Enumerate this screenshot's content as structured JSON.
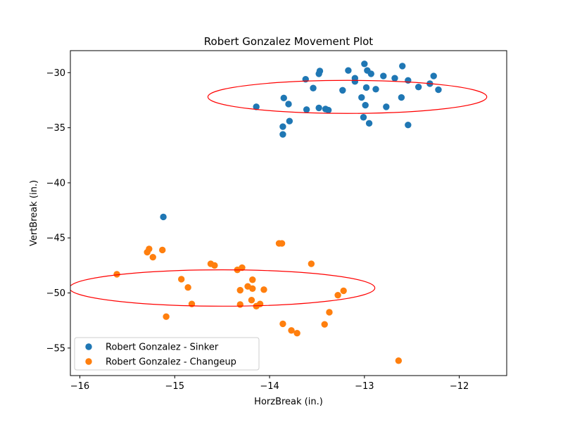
{
  "chart_data": {
    "type": "scatter",
    "title": "Robert Gonzalez Movement Plot",
    "xlabel": "HorzBreak (in.)",
    "ylabel": "VertBreak (in.)",
    "xlim": [
      -16.1,
      -11.5
    ],
    "ylim": [
      -57.5,
      -28
    ],
    "xticks": [
      -16,
      -15,
      -14,
      -13,
      -12
    ],
    "xtick_labels": [
      "−16",
      "−15",
      "−14",
      "−13",
      "−12"
    ],
    "yticks": [
      -55,
      -50,
      -45,
      -40,
      -35,
      -30
    ],
    "ytick_labels": [
      "−55",
      "−50",
      "−45",
      "−40",
      "−35",
      "−30"
    ],
    "grid": false,
    "legend_position": "lower-left",
    "series": [
      {
        "name": "Robert Gonzalez - Sinker",
        "color": "#1f77b4",
        "points": [
          [
            -13.0,
            -29.2
          ],
          [
            -12.6,
            -29.4
          ],
          [
            -12.97,
            -29.8
          ],
          [
            -13.17,
            -29.8
          ],
          [
            -13.47,
            -29.85
          ],
          [
            -13.48,
            -30.1
          ],
          [
            -12.93,
            -30.1
          ],
          [
            -12.8,
            -30.3
          ],
          [
            -12.27,
            -30.3
          ],
          [
            -13.1,
            -30.5
          ],
          [
            -12.68,
            -30.5
          ],
          [
            -13.62,
            -30.6
          ],
          [
            -12.54,
            -30.7
          ],
          [
            -13.1,
            -30.8
          ],
          [
            -12.31,
            -31.0
          ],
          [
            -12.43,
            -31.3
          ],
          [
            -12.98,
            -31.35
          ],
          [
            -13.54,
            -31.4
          ],
          [
            -12.88,
            -31.5
          ],
          [
            -13.23,
            -31.6
          ],
          [
            -12.22,
            -31.55
          ],
          [
            -13.03,
            -32.25
          ],
          [
            -13.85,
            -32.3
          ],
          [
            -12.61,
            -32.25
          ],
          [
            -13.8,
            -32.85
          ],
          [
            -12.99,
            -32.95
          ],
          [
            -14.14,
            -33.1
          ],
          [
            -12.77,
            -33.1
          ],
          [
            -13.48,
            -33.2
          ],
          [
            -13.61,
            -33.35
          ],
          [
            -13.41,
            -33.3
          ],
          [
            -13.38,
            -33.4
          ],
          [
            -13.01,
            -34.05
          ],
          [
            -13.79,
            -34.4
          ],
          [
            -12.95,
            -34.6
          ],
          [
            -12.54,
            -34.75
          ],
          [
            -13.86,
            -34.9
          ],
          [
            -13.86,
            -35.6
          ],
          [
            -15.12,
            -43.1
          ]
        ]
      },
      {
        "name": "Robert Gonzalez - Changeup",
        "color": "#ff7f0e",
        "points": [
          [
            -13.9,
            -45.5
          ],
          [
            -13.87,
            -45.5
          ],
          [
            -15.27,
            -46.0
          ],
          [
            -15.13,
            -46.1
          ],
          [
            -15.29,
            -46.3
          ],
          [
            -15.23,
            -46.75
          ],
          [
            -14.62,
            -47.35
          ],
          [
            -14.58,
            -47.5
          ],
          [
            -13.56,
            -47.35
          ],
          [
            -14.29,
            -47.7
          ],
          [
            -14.34,
            -47.9
          ],
          [
            -15.61,
            -48.3
          ],
          [
            -14.93,
            -48.75
          ],
          [
            -14.18,
            -48.8
          ],
          [
            -14.86,
            -49.5
          ],
          [
            -14.23,
            -49.4
          ],
          [
            -14.18,
            -49.6
          ],
          [
            -14.31,
            -49.75
          ],
          [
            -14.06,
            -49.7
          ],
          [
            -13.22,
            -49.8
          ],
          [
            -13.28,
            -50.2
          ],
          [
            -14.19,
            -50.65
          ],
          [
            -14.82,
            -51.0
          ],
          [
            -14.31,
            -51.05
          ],
          [
            -14.1,
            -51.0
          ],
          [
            -14.14,
            -51.2
          ],
          [
            -13.37,
            -51.75
          ],
          [
            -15.09,
            -52.15
          ],
          [
            -13.86,
            -52.8
          ],
          [
            -13.42,
            -52.85
          ],
          [
            -13.77,
            -53.4
          ],
          [
            -13.71,
            -53.65
          ],
          [
            -12.64,
            -56.15
          ]
        ]
      }
    ],
    "ellipses": [
      {
        "color": "#ff0000",
        "cx": -13.18,
        "cy": -32.2,
        "rx": 1.47,
        "ry": 1.5
      },
      {
        "color": "#ff0000",
        "cx": -14.5,
        "cy": -49.55,
        "rx": 1.61,
        "ry": 1.65
      }
    ]
  }
}
